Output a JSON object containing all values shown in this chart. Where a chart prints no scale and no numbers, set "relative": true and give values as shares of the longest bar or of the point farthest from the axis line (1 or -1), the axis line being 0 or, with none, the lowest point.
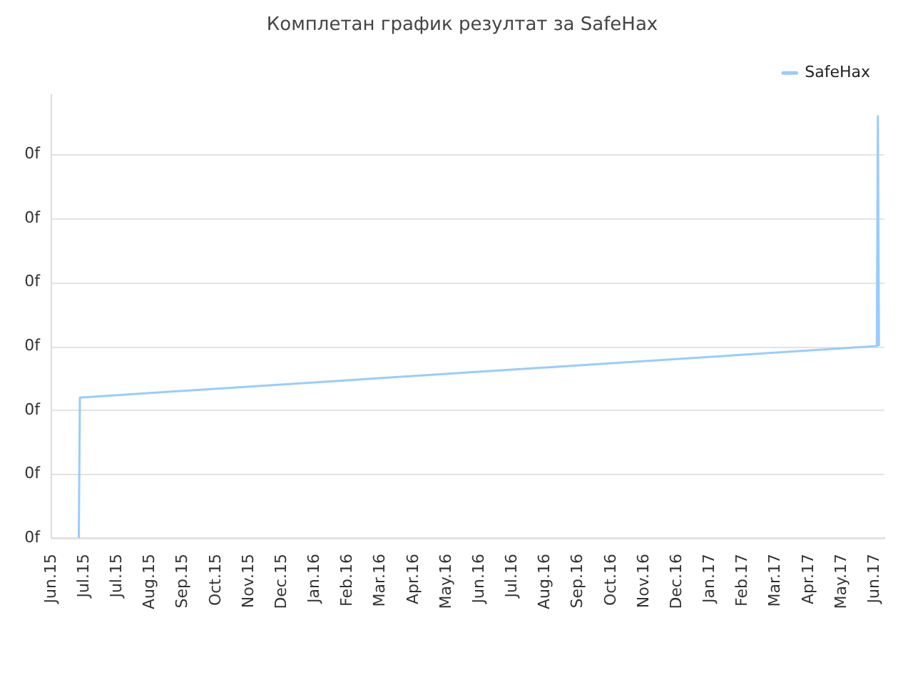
{
  "chart_data": {
    "type": "line",
    "title": "Комплетан график резултат за SafeHax",
    "relative": true,
    "x": [
      "2015-06-26",
      "2015-06-27",
      "2017-06-22",
      "2017-06-23",
      "2017-06-24"
    ],
    "series": [
      {
        "name": "SafeHax",
        "color": "#99ccff",
        "values": [
          0,
          0.333,
          0.455,
          1,
          0.455
        ]
      }
    ],
    "xlim": [
      "2015-06-01",
      "2017-06-29"
    ],
    "xticks": [
      {
        "value": "2015-06-01",
        "label": "Jun.15"
      },
      {
        "value": "2015-07-01",
        "label": "Jul.15"
      },
      {
        "value": "2015-07-31",
        "label": "Jul.15"
      },
      {
        "value": "2015-08-30",
        "label": "Aug.15"
      },
      {
        "value": "2015-09-29",
        "label": "Sep.15"
      },
      {
        "value": "2015-10-29",
        "label": "Oct.15"
      },
      {
        "value": "2015-11-28",
        "label": "Nov.15"
      },
      {
        "value": "2015-12-28",
        "label": "Dec.15"
      },
      {
        "value": "2016-01-27",
        "label": "Jan.16"
      },
      {
        "value": "2016-02-26",
        "label": "Feb.16"
      },
      {
        "value": "2016-03-27",
        "label": "Mar.16"
      },
      {
        "value": "2016-04-26",
        "label": "Apr.16"
      },
      {
        "value": "2016-05-26",
        "label": "May.16"
      },
      {
        "value": "2016-06-25",
        "label": "Jun.16"
      },
      {
        "value": "2016-07-25",
        "label": "Jul.16"
      },
      {
        "value": "2016-08-24",
        "label": "Aug.16"
      },
      {
        "value": "2016-09-23",
        "label": "Sep.16"
      },
      {
        "value": "2016-10-23",
        "label": "Oct.16"
      },
      {
        "value": "2016-11-22",
        "label": "Nov.16"
      },
      {
        "value": "2016-12-22",
        "label": "Dec.16"
      },
      {
        "value": "2017-01-21",
        "label": "Jan.17"
      },
      {
        "value": "2017-02-20",
        "label": "Feb.17"
      },
      {
        "value": "2017-03-22",
        "label": "Mar.17"
      },
      {
        "value": "2017-04-21",
        "label": "Apr.17"
      },
      {
        "value": "2017-05-21",
        "label": "May.17"
      },
      {
        "value": "2017-06-20",
        "label": "Jun.17"
      }
    ],
    "annotations": [
      "0f",
      "0f",
      "0f",
      "0f",
      "0f",
      "0f",
      "0f"
    ],
    "grid": "y",
    "legend": "top right",
    "marker": "none",
    "line_style": "solid"
  }
}
